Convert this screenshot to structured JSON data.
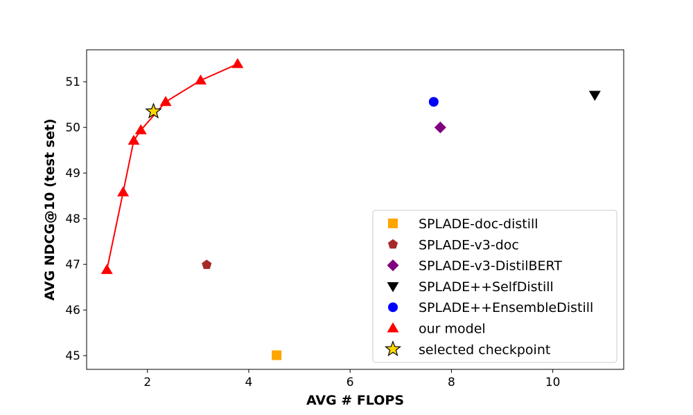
{
  "chart_data": {
    "type": "scatter",
    "xlabel": "AVG # FLOPS",
    "ylabel": "AVG NDCG@10 (test set)",
    "xlim": [
      0.8,
      11.4
    ],
    "ylim": [
      44.7,
      51.7
    ],
    "xticks": [
      2,
      4,
      6,
      8,
      10
    ],
    "yticks": [
      45,
      46,
      47,
      48,
      49,
      50,
      51
    ],
    "legend_position": "lower-right",
    "series": [
      {
        "name": "SPLADE-doc-distill",
        "marker": "square",
        "color": "#ffa500",
        "points": [
          [
            4.55,
            45.01
          ]
        ]
      },
      {
        "name": "SPLADE-v3-doc",
        "marker": "pentagon",
        "color": "#a52a2a",
        "points": [
          [
            3.17,
            46.99
          ]
        ]
      },
      {
        "name": "SPLADE-v3-DistilBERT",
        "marker": "diamond",
        "color": "#800080",
        "points": [
          [
            7.78,
            50.0
          ]
        ]
      },
      {
        "name": "SPLADE++SelfDistill",
        "marker": "triangle-down",
        "color": "#000000",
        "points": [
          [
            10.83,
            50.71
          ]
        ]
      },
      {
        "name": "SPLADE++EnsembleDistill",
        "marker": "circle",
        "color": "#0000ff",
        "points": [
          [
            7.65,
            50.56
          ]
        ]
      },
      {
        "name": "our model",
        "marker": "triangle-up",
        "color": "#ff0000",
        "line": true,
        "points": [
          [
            1.2,
            46.88
          ],
          [
            1.52,
            48.58
          ],
          [
            1.73,
            49.71
          ],
          [
            1.87,
            49.94
          ],
          [
            2.36,
            50.56
          ],
          [
            3.05,
            51.03
          ],
          [
            3.78,
            51.39
          ]
        ]
      },
      {
        "name": "selected checkpoint",
        "marker": "star",
        "color": "#ffd700",
        "points": [
          [
            2.12,
            50.35
          ]
        ]
      }
    ]
  }
}
